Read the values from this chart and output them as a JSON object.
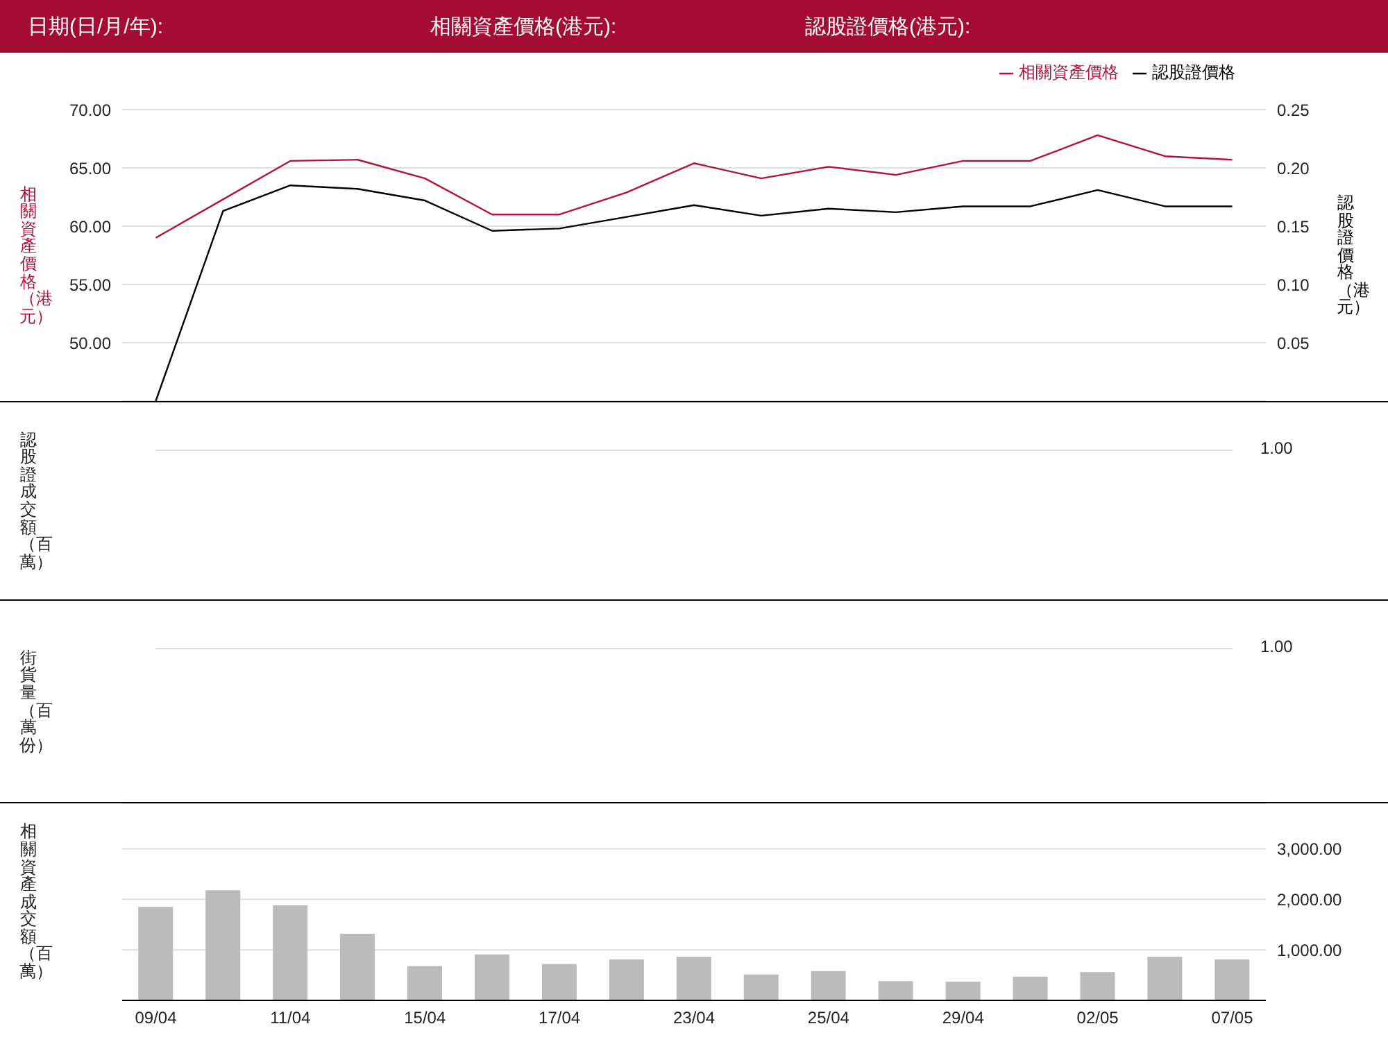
{
  "chart_data": [
    {
      "type": "line",
      "annotations": [
        "日期(日/月/年):",
        "相關資產價格(港元):",
        "認股證價格(港元):"
      ],
      "ylabel": "相關資產價格（港元）",
      "y2label": "認股證價格（港元）",
      "categories": [
        null,
        null,
        null,
        null,
        null,
        null,
        null,
        null,
        null,
        null,
        null,
        null,
        null,
        null,
        null,
        null,
        null
      ],
      "series": [
        {
          "name": "相關資產價格",
          "color": "#b5123a",
          "values": [
            59.0,
            62.3,
            65.6,
            65.7,
            64.1,
            61.0,
            61.0,
            62.9,
            65.4,
            64.1,
            65.1,
            64.4,
            65.6,
            65.6,
            67.8,
            66.0,
            65.7
          ]
        },
        {
          "name": "認股證價格",
          "color": "#000000",
          "axis": "y2",
          "values": [
            0.0,
            0.163,
            0.185,
            0.182,
            0.172,
            0.146,
            0.148,
            0.158,
            0.168,
            0.159,
            0.165,
            0.162,
            0.167,
            0.167,
            0.181,
            0.167,
            0.167
          ]
        }
      ],
      "ylim": [
        45,
        70
      ],
      "yticks": [
        {
          "value": 50,
          "label": "50.00"
        },
        {
          "value": 55,
          "label": "55.00"
        },
        {
          "value": 60,
          "label": "60.00"
        },
        {
          "value": 65,
          "label": "65.00"
        },
        {
          "value": 70,
          "label": "70.00"
        }
      ],
      "y2lim": [
        0,
        0.25
      ],
      "y2ticks": [
        {
          "value": 0.05,
          "label": "0.05"
        },
        {
          "value": 0.1,
          "label": "0.10"
        },
        {
          "value": 0.15,
          "label": "0.15"
        },
        {
          "value": 0.2,
          "label": "0.20"
        },
        {
          "value": 0.25,
          "label": "0.25"
        }
      ],
      "grid": "y",
      "legend": "top right"
    },
    {
      "type": "other",
      "ylabel": "認股證成交額（百萬）",
      "annotations": [
        "1.00"
      ]
    },
    {
      "type": "other",
      "ylabel": "街貨量（百萬份）",
      "annotations": [
        "1.00"
      ]
    },
    {
      "type": "bar",
      "ylabel": "相關資產成交額（百萬）",
      "categories": [
        "09/04",
        null,
        "11/04",
        null,
        "15/04",
        null,
        "17/04",
        null,
        "23/04",
        null,
        "25/04",
        null,
        "29/04",
        null,
        "02/05",
        null,
        "07/05"
      ],
      "series": [
        {
          "axis": "y2",
          "color": "#bbbbbb",
          "values": [
            1850,
            2180,
            1880,
            1320,
            680,
            910,
            720,
            810,
            860,
            510,
            580,
            380,
            370,
            470,
            560,
            860,
            810
          ]
        }
      ],
      "y2lim": [
        0,
        3900
      ],
      "y2ticks": [
        {
          "value": 1000,
          "label": "1,000.00"
        },
        {
          "value": 2000,
          "label": "2,000.00"
        },
        {
          "value": 3000,
          "label": "3,000.00"
        }
      ],
      "grid": "y"
    }
  ]
}
